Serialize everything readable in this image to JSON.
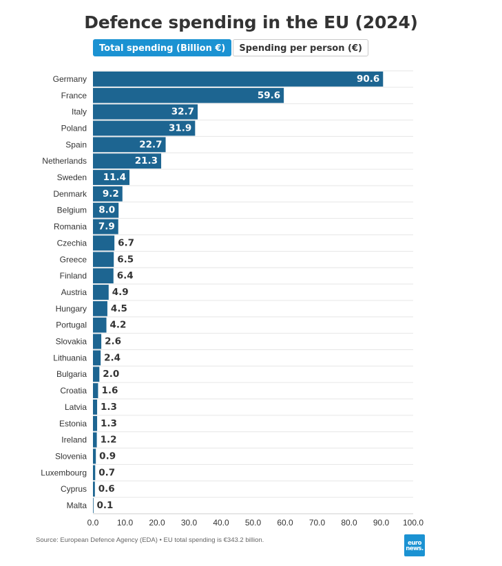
{
  "title": "Defence spending in the EU (2024)",
  "tabs": [
    {
      "label": "Total spending (Billion €)",
      "active": true
    },
    {
      "label": "Spending per person (€)",
      "active": false
    }
  ],
  "chart_data": {
    "type": "bar",
    "orientation": "horizontal",
    "title": "Defence spending in the EU (2024)",
    "xlabel": "",
    "ylabel": "",
    "unit": "Billion €",
    "xlim": [
      0,
      100
    ],
    "xticks": [
      "0.0",
      "10.0",
      "20.0",
      "30.0",
      "40.0",
      "50.0",
      "60.0",
      "70.0",
      "80.0",
      "90.0",
      "100.0"
    ],
    "grid": true,
    "categories": [
      "Germany",
      "France",
      "Italy",
      "Poland",
      "Spain",
      "Netherlands",
      "Sweden",
      "Denmark",
      "Belgium",
      "Romania",
      "Czechia",
      "Greece",
      "Finland",
      "Austria",
      "Hungary",
      "Portugal",
      "Slovakia",
      "Lithuania",
      "Bulgaria",
      "Croatia",
      "Latvia",
      "Estonia",
      "Ireland",
      "Slovenia",
      "Luxembourg",
      "Cyprus",
      "Malta"
    ],
    "values": [
      90.6,
      59.6,
      32.7,
      31.9,
      22.7,
      21.3,
      11.4,
      9.2,
      8.0,
      7.9,
      6.7,
      6.5,
      6.4,
      4.9,
      4.5,
      4.2,
      2.6,
      2.4,
      2.0,
      1.6,
      1.3,
      1.3,
      1.2,
      0.9,
      0.7,
      0.6,
      0.1
    ],
    "value_labels": [
      "90.6",
      "59.6",
      "32.7",
      "31.9",
      "22.7",
      "21.3",
      "11.4",
      "9.2",
      "8.0",
      "7.9",
      "6.7",
      "6.5",
      "6.4",
      "4.9",
      "4.5",
      "4.2",
      "2.6",
      "2.4",
      "2.0",
      "1.6",
      "1.3",
      "1.3",
      "1.2",
      "0.9",
      "0.7",
      "0.6",
      "0.1"
    ]
  },
  "colors": {
    "bar": "#1d6591",
    "accent": "#1b92d2",
    "grid": "#e6e6e6"
  },
  "footer": {
    "source": "Source: European Defence Agency (EDA) • EU total spending is €343.2 billion."
  },
  "logo": {
    "line1": "euro",
    "line2": "news."
  }
}
